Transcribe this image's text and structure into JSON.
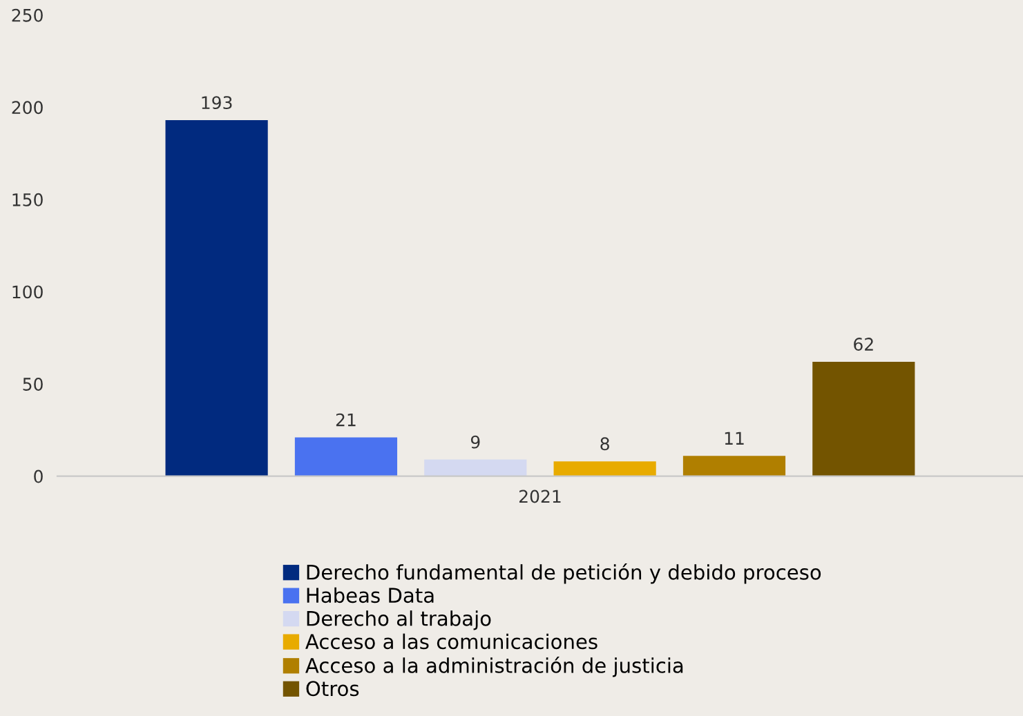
{
  "chart_data": {
    "type": "bar",
    "categories": [
      "2021"
    ],
    "series": [
      {
        "name": "Derecho fundamental de petición y debido proceso",
        "color": "#012a7f",
        "values": [
          193
        ]
      },
      {
        "name": "Habeas Data",
        "color": "#4a72f0",
        "values": [
          21
        ]
      },
      {
        "name": "Derecho al trabajo",
        "color": "#d4d9f1",
        "values": [
          9
        ]
      },
      {
        "name": "Acceso a las comunicaciones",
        "color": "#e8ab00",
        "values": [
          8
        ]
      },
      {
        "name": "Acceso a la administración de justicia",
        "color": "#b07f00",
        "values": [
          11
        ]
      },
      {
        "name": "Otros",
        "color": "#735400",
        "values": [
          62
        ]
      }
    ],
    "ylim": [
      0,
      250
    ],
    "yticks": [
      0,
      50,
      100,
      150,
      200,
      250
    ],
    "grid": false,
    "legend": "bottom",
    "data_labels": true
  }
}
